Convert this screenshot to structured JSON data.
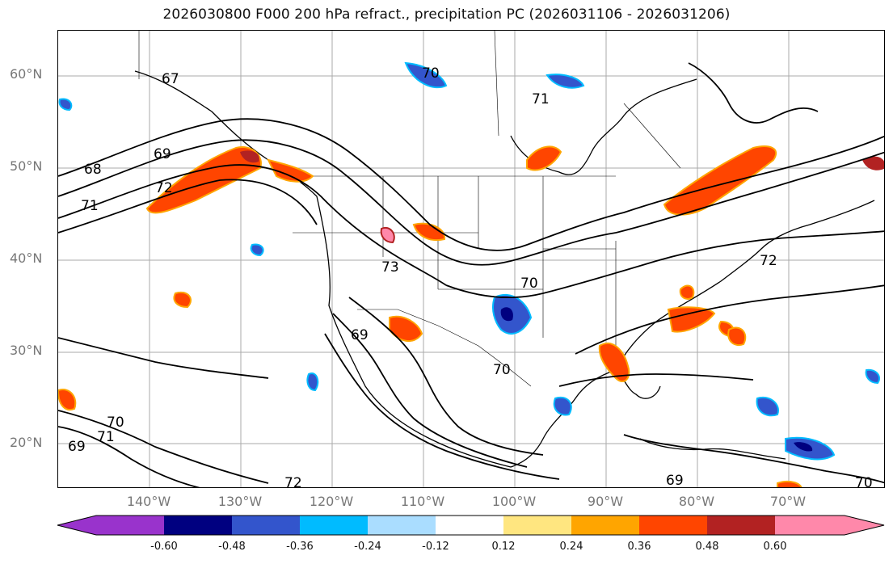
{
  "title": "2026030800 F000 200 hPa refract., precipitation PC (2026031106 - 2026031206)",
  "latitude_labels": [
    "60°N",
    "50°N",
    "40°N",
    "30°N",
    "20°N"
  ],
  "longitude_labels": [
    "140°W",
    "130°W",
    "120°W",
    "110°W",
    "100°W",
    "90°W",
    "80°W",
    "70°W"
  ],
  "contour_labels": [
    "67",
    "68",
    "69",
    "72",
    "71",
    "70",
    "73",
    "69",
    "70",
    "71",
    "70",
    "72",
    "71",
    "69",
    "72",
    "70",
    "69",
    "70"
  ],
  "colorbar": {
    "tick_labels": [
      "-0.60",
      "-0.48",
      "-0.36",
      "-0.24",
      "-0.12",
      "0.12",
      "0.24",
      "0.36",
      "0.48",
      "0.60"
    ],
    "colors": [
      "#9933cc",
      "#000080",
      "#3355cc",
      "#00bbff",
      "#aaddff",
      "#ffffff",
      "#ffe680",
      "#ffa500",
      "#ff4500",
      "#b22222",
      "#ff88aa",
      "#ff88aa"
    ]
  },
  "colors": {
    "positive_strong": "#ff4500",
    "positive_mid": "#ffa500",
    "positive_weak": "#ffe680",
    "positive_max": "#b22222",
    "positive_extreme": "#ff88aa",
    "negative_weak": "#aaddff",
    "negative_mid": "#00bbff",
    "negative_strong": "#3355cc",
    "negative_max": "#000080",
    "negative_extreme": "#9933cc"
  }
}
